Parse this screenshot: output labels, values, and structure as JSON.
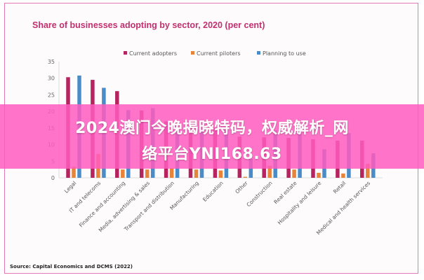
{
  "overlay": {
    "line1": "2024澳门今晚揭晓特码，权威解析_网",
    "line2": "络平台YNI168.63"
  },
  "source": "Source: Capital Economics and DCMS (2022)",
  "chart_data": {
    "type": "bar",
    "title": "Share of businesses adopting by sector, 2020 (per cent)",
    "xlabel": "",
    "ylabel": "",
    "ylim": [
      0,
      35
    ],
    "yticks": [
      0,
      5,
      10,
      15,
      20,
      25,
      30,
      35
    ],
    "grid": false,
    "legend_position": "top-center",
    "categories": [
      "Legal",
      "IT and telecoms",
      "Finance and accounting",
      "Media, advertising & sales",
      "Transport and distribution",
      "Manufacturing",
      "Education",
      "Other",
      "Construction",
      "Real estate",
      "Hospitality and leisure",
      "Retail",
      "Medical and health services"
    ],
    "series": [
      {
        "name": "Current adopters",
        "color": "#b5245e",
        "values": [
          30.3,
          29.5,
          26.1,
          20.3,
          17.0,
          16.0,
          15.0,
          12.4,
          12.2,
          12.0,
          11.6,
          11.2,
          11.2
        ]
      },
      {
        "name": "Current piloters",
        "color": "#e8833a",
        "values": [
          3.3,
          7.2,
          2.5,
          2.5,
          2.9,
          2.5,
          2.2,
          0.3,
          3.6,
          2.5,
          1.5,
          1.3,
          4.2
        ]
      },
      {
        "name": "Planning to use",
        "color": "#4a8cc7",
        "values": [
          30.8,
          27.1,
          20.4,
          21.0,
          15.0,
          15.0,
          15.0,
          5.7,
          14.3,
          13.5,
          8.6,
          13.5,
          7.4
        ]
      }
    ]
  }
}
